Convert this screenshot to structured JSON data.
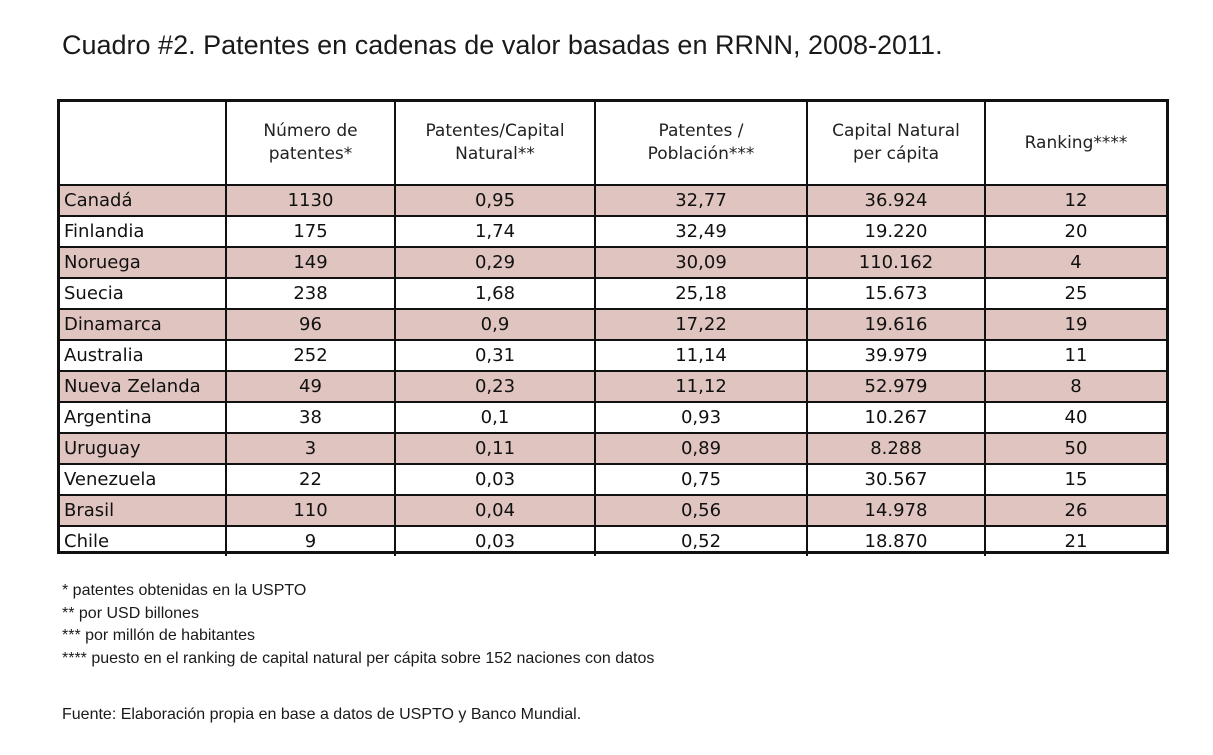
{
  "title": "Cuadro #2. Patentes en cadenas de valor basadas en RRNN, 2008-2011.",
  "table": {
    "headers": [
      {
        "line1": "",
        "line2": ""
      },
      {
        "line1": "Número de",
        "line2": "patentes*"
      },
      {
        "line1": "Patentes/Capital",
        "line2": "Natural**"
      },
      {
        "line1": "Patentes /",
        "line2": "Población***"
      },
      {
        "line1": "Capital Natural",
        "line2": "per cápita"
      },
      {
        "line1": "Ranking****",
        "line2": ""
      }
    ],
    "rows": [
      [
        "Canadá",
        "1130",
        "0,95",
        "32,77",
        "36.924",
        "12"
      ],
      [
        "Finlandia",
        "175",
        "1,74",
        "32,49",
        "19.220",
        "20"
      ],
      [
        "Noruega",
        "149",
        "0,29",
        "30,09",
        "110.162",
        "4"
      ],
      [
        "Suecia",
        "238",
        "1,68",
        "25,18",
        "15.673",
        "25"
      ],
      [
        "Dinamarca",
        "96",
        "0,9",
        "17,22",
        "19.616",
        "19"
      ],
      [
        "Australia",
        "252",
        "0,31",
        "11,14",
        "39.979",
        "11"
      ],
      [
        "Nueva Zelanda",
        "49",
        "0,23",
        "11,12",
        "52.979",
        "8"
      ],
      [
        "Argentina",
        "38",
        "0,1",
        "0,93",
        "10.267",
        "40"
      ],
      [
        "Uruguay",
        "3",
        "0,11",
        "0,89",
        "8.288",
        "50"
      ],
      [
        "Venezuela",
        "22",
        "0,03",
        "0,75",
        "30.567",
        "15"
      ],
      [
        "Brasil",
        "110",
        "0,04",
        "0,56",
        "14.978",
        "26"
      ],
      [
        "Chile",
        "9",
        "0,03",
        "0,52",
        "18.870",
        "21"
      ]
    ],
    "shaded_row_color": "#dfc4bf"
  },
  "notes": [
    "* patentes obtenidas en la USPTO",
    "** por USD billones",
    "*** por millón de habitantes",
    "**** puesto en el ranking de capital natural per cápita sobre 152 naciones con datos"
  ],
  "source": "Fuente: Elaboración propia en base a datos de USPTO y Banco Mundial."
}
